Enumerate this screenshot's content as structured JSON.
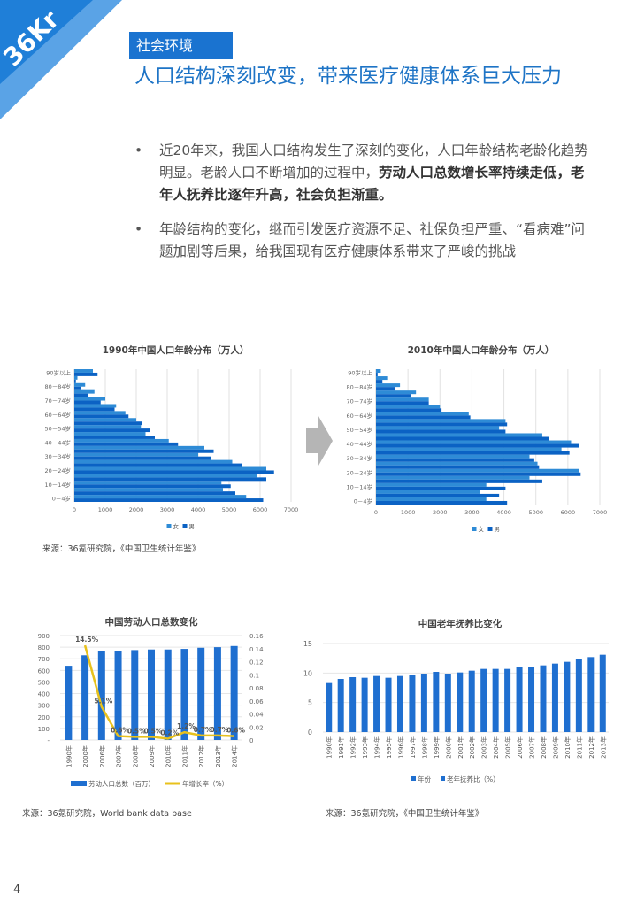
{
  "logo": {
    "text": "36Kr",
    "colors": {
      "dark": "#1f7fd8",
      "light": "#5aa3e6"
    }
  },
  "section_tag": "社会环境",
  "title": "人口结构深刻改变，带来医疗健康体系巨大压力",
  "bullets": [
    {
      "normal": "近20年来，我国人口结构发生了深刻的变化，人口年龄结构老龄化趋势明显。老龄人口不断增加的过程中，",
      "bold": "劳动人口总数增长率持续走低，老年人抚养比逐年升高，社会负担渐重。"
    },
    {
      "normal": "年龄结构的变化，继而引发医疗资源不足、社保负担严重、“看病难”问题加剧等后果，给我国现有医疗健康体系带来了严峻的挑战",
      "bold": ""
    }
  ],
  "colors": {
    "accent": "#1a73d0",
    "female": "#2e8bd6",
    "male": "#0b62c4",
    "bar": "#1f6fd0",
    "line": "#e8c11c"
  },
  "arrow_icon": "right-arrow",
  "chart_data": [
    {
      "type": "bar",
      "orientation": "horizontal",
      "title": "1990年中国人口年龄分布（万人）",
      "categories": [
        "0－4岁",
        "5－9岁",
        "10－14岁",
        "15－19岁",
        "20－24岁",
        "25－29岁",
        "30－34岁",
        "35－39岁",
        "40－44岁",
        "45－49岁",
        "50－54岁",
        "55－59岁",
        "60－64岁",
        "65－69岁",
        "70－74岁",
        "75－79岁",
        "80－84岁",
        "85－89岁",
        "90岁以上"
      ],
      "category_labels_shown": [
        "0－4岁",
        "10－14岁",
        "20－24岁",
        "30－34岁",
        "40－44岁",
        "50－54岁",
        "60－64岁",
        "70－74岁",
        "80－84岁",
        "90岁以上"
      ],
      "series": [
        {
          "name": "女",
          "values": [
            5550,
            4800,
            4750,
            5900,
            6200,
            5100,
            4000,
            4200,
            3050,
            2300,
            2150,
            2000,
            1650,
            1350,
            1000,
            650,
            350,
            100,
            600
          ]
        },
        {
          "name": "男",
          "values": [
            6100,
            5200,
            5050,
            6200,
            6450,
            5400,
            4400,
            4500,
            3350,
            2600,
            2450,
            2200,
            1750,
            1300,
            850,
            450,
            200,
            50,
            750
          ]
        }
      ],
      "xlim": [
        0,
        7000
      ],
      "xticks": [
        "0",
        "1000",
        "2000",
        "3000",
        "4000",
        "5000",
        "6000",
        "7000"
      ],
      "grid": true,
      "legend": "bottom"
    },
    {
      "type": "bar",
      "orientation": "horizontal",
      "title": "2010年中国人口年龄分布（万人）",
      "categories": [
        "0－4岁",
        "5－9岁",
        "10－14岁",
        "15－19岁",
        "20－24岁",
        "25－29岁",
        "30－34岁",
        "35－39岁",
        "40－44岁",
        "45－49岁",
        "50－54岁",
        "55－59岁",
        "60－64岁",
        "65－69岁",
        "70－74岁",
        "75－79岁",
        "80－84岁",
        "85－89岁",
        "90岁以上"
      ],
      "category_labels_shown": [
        "0－4岁",
        "10－14岁",
        "20－24岁",
        "30－34岁",
        "40－44岁",
        "50－54岁",
        "60－64岁",
        "70－74岁",
        "80－84岁",
        "90岁以上"
      ],
      "series": [
        {
          "name": "女",
          "values": [
            3450,
            3250,
            3450,
            4800,
            6350,
            5050,
            4800,
            5800,
            6100,
            5200,
            3850,
            4050,
            2900,
            2000,
            1650,
            1250,
            750,
            350,
            150
          ]
        },
        {
          "name": "男",
          "values": [
            4100,
            3850,
            4050,
            5200,
            6400,
            5100,
            4950,
            6050,
            6350,
            5400,
            4050,
            4100,
            2950,
            2050,
            1650,
            1100,
            600,
            200,
            50
          ]
        }
      ],
      "xlim": [
        0,
        7000
      ],
      "xticks": [
        "0",
        "1000",
        "2000",
        "3000",
        "4000",
        "5000",
        "6000",
        "7000"
      ],
      "grid": true,
      "legend": "bottom"
    },
    {
      "type": "bar+line",
      "title": "中国劳动人口总数变化",
      "categories": [
        "1990年",
        "2000年",
        "2006年",
        "2007年",
        "2008年",
        "2009年",
        "2010年",
        "2011年",
        "2012年",
        "2013年",
        "2014年"
      ],
      "series": [
        {
          "name": "劳动人口总数（百万）",
          "type": "bar",
          "axis": "left",
          "values": [
            640,
            730,
            770,
            770,
            775,
            780,
            780,
            785,
            795,
            800,
            810
          ]
        },
        {
          "name": "年增长率（%）",
          "type": "line",
          "axis": "right",
          "values": [
            null,
            0.145,
            0.051,
            0.006,
            0.005,
            0.005,
            0.002,
            0.012,
            0.007,
            0.007,
            0.006
          ],
          "labels": [
            null,
            "14.5%",
            "5.1%",
            "0.6%",
            "0.5%",
            "0.5%",
            "0.2%",
            "1.2%",
            "0.7%",
            "0.7%",
            "0.6%"
          ]
        }
      ],
      "ylim": [
        0,
        900
      ],
      "yticks": [
        "-",
        "100",
        "200",
        "300",
        "400",
        "500",
        "600",
        "700",
        "800",
        "900"
      ],
      "y2lim": [
        0,
        0.16
      ],
      "y2ticks": [
        "0",
        "0.02",
        "0.04",
        "0.06",
        "0.08",
        "0.1",
        "0.12",
        "0.14",
        "0.16"
      ],
      "grid": true,
      "legend": "bottom"
    },
    {
      "type": "bar",
      "title": "中国老年抚养比变化",
      "categories": [
        "1990年",
        "1991年",
        "1992年",
        "1993年",
        "1994年",
        "1995年",
        "1996年",
        "1997年",
        "1998年",
        "1999年",
        "2000年",
        "2001年",
        "2002年",
        "2003年",
        "2004年",
        "2005年",
        "2006年",
        "2007年",
        "2008年",
        "2009年",
        "2010年",
        "2011年",
        "2012年",
        "2013年"
      ],
      "series": [
        {
          "name": "老年抚养比（%）",
          "values": [
            8.3,
            9.0,
            9.3,
            9.2,
            9.5,
            9.2,
            9.5,
            9.7,
            9.9,
            10.2,
            9.9,
            10.1,
            10.4,
            10.7,
            10.7,
            10.7,
            11.0,
            11.1,
            11.3,
            11.6,
            11.9,
            12.3,
            12.7,
            13.1
          ]
        }
      ],
      "legend_entries": [
        "年份",
        "老年抚养比（%）"
      ],
      "ylim": [
        0,
        15
      ],
      "yticks": [
        "0",
        "5",
        "10",
        "15"
      ],
      "grid": true,
      "legend": "bottom"
    }
  ],
  "sources": {
    "pyramid": "来源：36氪研究院，《中国卫生统计年鉴》",
    "labor": "来源：36氪研究院，World bank data base",
    "dependency": "来源：36氪研究院，《中国卫生统计年鉴》"
  },
  "page_number": "4"
}
